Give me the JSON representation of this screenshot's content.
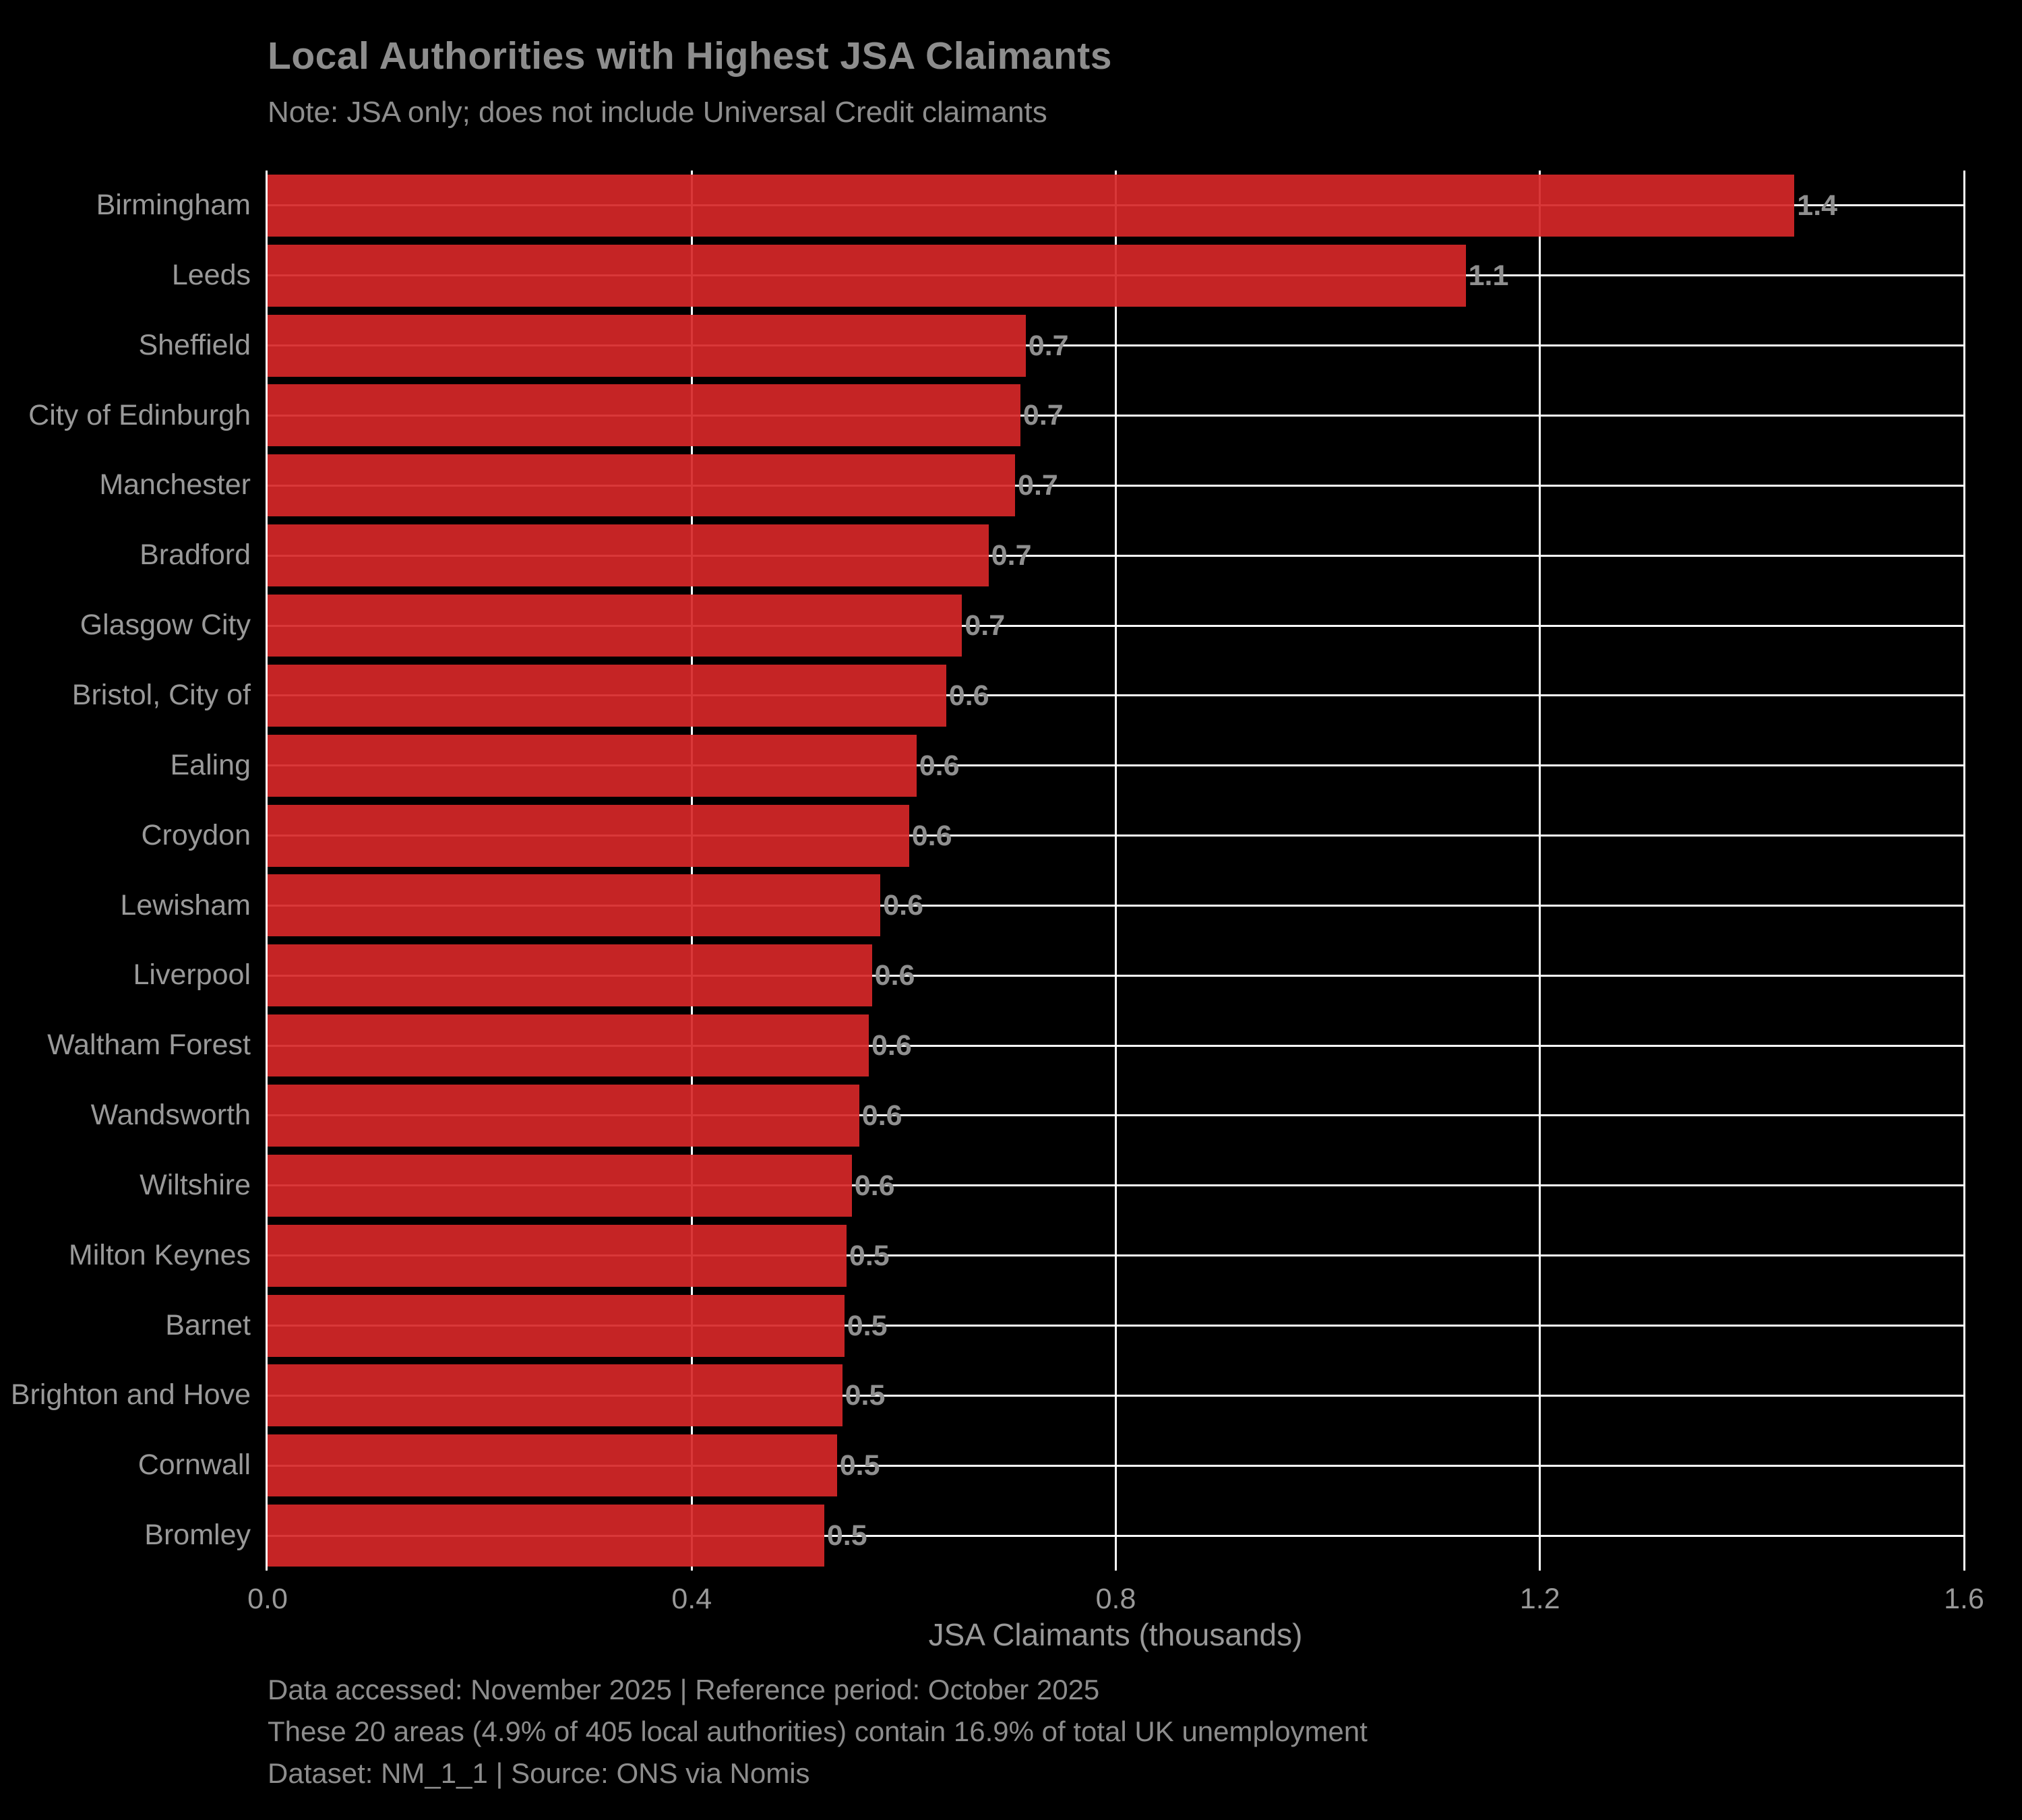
{
  "title": "Local Authorities with Highest JSA Claimants",
  "subtitle": "Note: JSA only; does not include Universal Credit claimants",
  "footer": {
    "line1": "Data accessed: November 2025 | Reference period: October 2025",
    "line2": "These 20 areas (4.9% of 405 local authorities) contain 16.9% of total UK unemployment",
    "line3": "Dataset: NM_1_1 | Source: ONS via Nomis"
  },
  "colors": {
    "background": "#000000",
    "bar": "#d62728",
    "grid": "#ffffff",
    "text": "#8d8d8d",
    "tick_text": "#999999"
  },
  "chart_data": {
    "type": "bar",
    "orientation": "horizontal",
    "title": "Local Authorities with Highest JSA Claimants",
    "subtitle": "Note: JSA only; does not include Universal Credit claimants",
    "xlabel": "JSA Claimants (thousands)",
    "ylabel": "",
    "xlim": [
      0,
      1.6
    ],
    "x_ticks": [
      0.0,
      0.4,
      0.8,
      1.2,
      1.6
    ],
    "x_tick_labels": [
      "0.0",
      "0.4",
      "0.8",
      "1.2",
      "1.6"
    ],
    "grid": true,
    "legend": false,
    "categories": [
      "Birmingham",
      "Leeds",
      "Sheffield",
      "City of Edinburgh",
      "Manchester",
      "Bradford",
      "Glasgow City",
      "Bristol, City of",
      "Ealing",
      "Croydon",
      "Lewisham",
      "Liverpool",
      "Waltham Forest",
      "Wandsworth",
      "Wiltshire",
      "Milton Keynes",
      "Barnet",
      "Brighton and Hove",
      "Cornwall",
      "Bromley"
    ],
    "values": [
      1.44,
      1.13,
      0.715,
      0.71,
      0.705,
      0.68,
      0.655,
      0.64,
      0.612,
      0.605,
      0.578,
      0.57,
      0.567,
      0.558,
      0.551,
      0.546,
      0.544,
      0.542,
      0.537,
      0.525
    ],
    "value_labels": [
      "1.4",
      "1.1",
      "0.7",
      "0.7",
      "0.7",
      "0.7",
      "0.7",
      "0.6",
      "0.6",
      "0.6",
      "0.6",
      "0.6",
      "0.6",
      "0.6",
      "0.6",
      "0.5",
      "0.5",
      "0.5",
      "0.5",
      "0.5"
    ]
  }
}
